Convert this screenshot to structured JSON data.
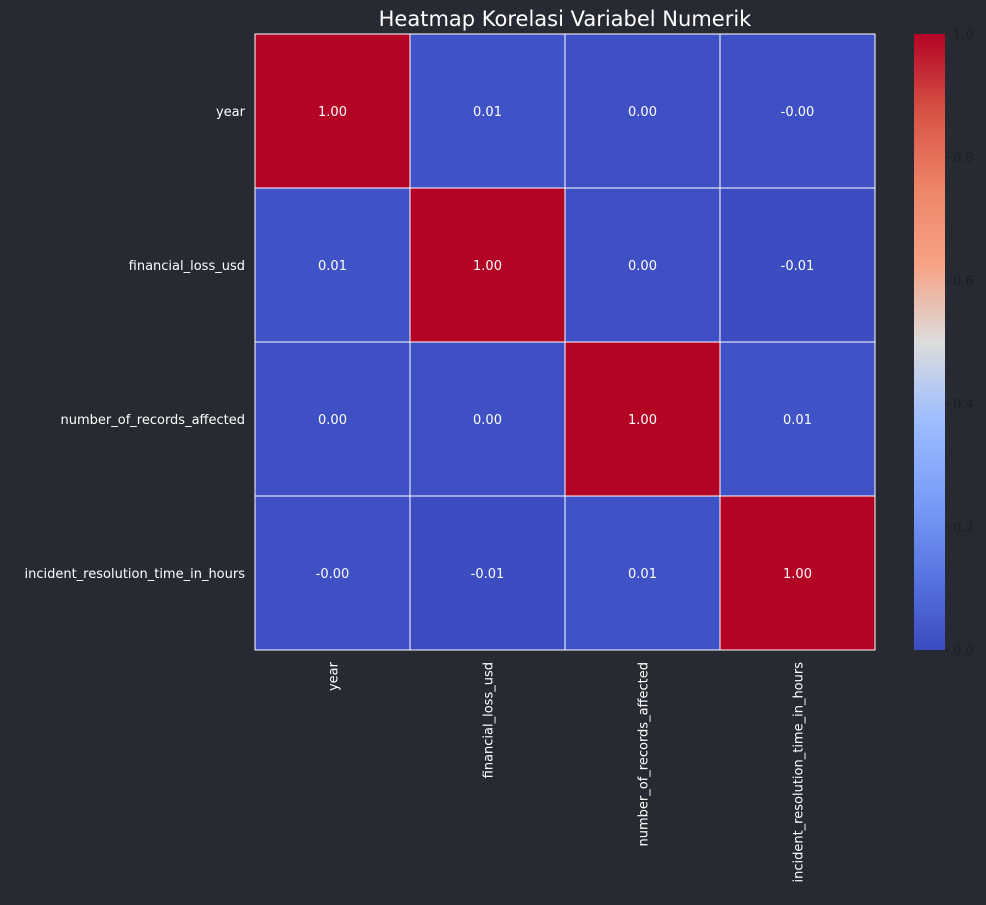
{
  "chart_data": {
    "type": "heatmap",
    "title": "Heatmap Korelasi Variabel Numerik",
    "row_labels": [
      "year",
      "financial_loss_usd",
      "number_of_records_affected",
      "incident_resolution_time_in_hours"
    ],
    "col_labels": [
      "year",
      "financial_loss_usd",
      "number_of_records_affected",
      "incident_resolution_time_in_hours"
    ],
    "values": [
      [
        1.0,
        0.01,
        0.0,
        -0.0
      ],
      [
        0.01,
        1.0,
        0.0,
        -0.01
      ],
      [
        0.0,
        0.0,
        1.0,
        0.01
      ],
      [
        -0.0,
        -0.01,
        0.01,
        1.0
      ]
    ],
    "cell_labels": [
      [
        "1.00",
        "0.01",
        "0.00",
        "-0.00"
      ],
      [
        "0.01",
        "1.00",
        "0.00",
        "-0.01"
      ],
      [
        "0.00",
        "0.00",
        "1.00",
        "0.01"
      ],
      [
        "-0.00",
        "-0.01",
        "0.01",
        "1.00"
      ]
    ],
    "colormap": "coolwarm",
    "colorbar": {
      "range": [
        0,
        1
      ],
      "tick_labels": [
        "0.0",
        "0.2",
        "0.4",
        "0.6",
        "0.8",
        "1.0"
      ]
    },
    "colors": {
      "background": "#282a33",
      "text": "#ffffff",
      "grid": "#ffffff",
      "colorbar_tick_text": "#1e1f24"
    }
  }
}
